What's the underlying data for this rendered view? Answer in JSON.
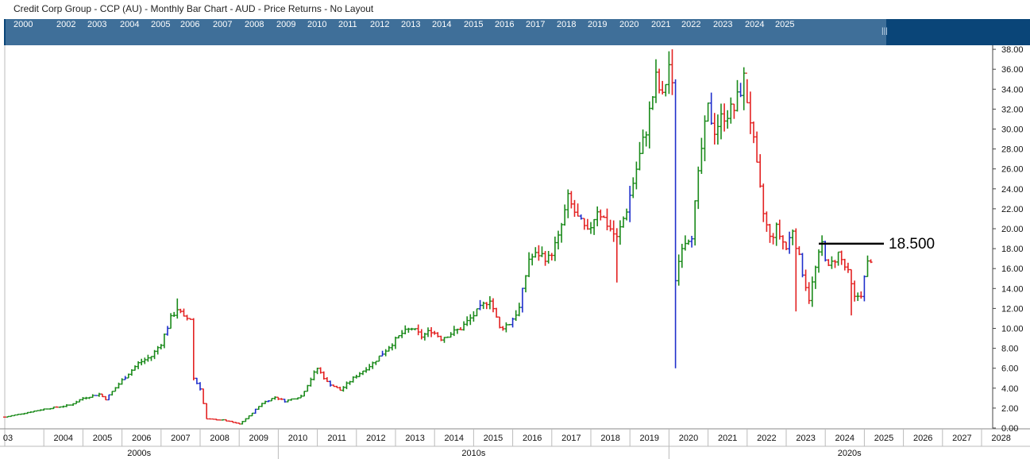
{
  "window": {
    "title": "Credit Corp Group - CCP (AU) - Monthly Bar Chart - AUD - Price Returns - No Layout"
  },
  "navigator": {
    "years": [
      "2000",
      "2002",
      "2003",
      "2004",
      "2005",
      "2006",
      "2007",
      "2008",
      "2009",
      "2010",
      "2011",
      "2012",
      "2013",
      "2014",
      "2015",
      "2016",
      "2017",
      "2018",
      "2019",
      "2020",
      "2021",
      "2022",
      "2023",
      "2024",
      "2025"
    ]
  },
  "colors": {
    "up": "#1a8a1a",
    "down": "#e32222",
    "neutral": "#1f2fcc",
    "navigator_bg": "#0a4578",
    "navigator_window": "#3f6f99",
    "horizontal_line": "#000000"
  },
  "chart_data": {
    "type": "ohlc-bar",
    "title": "Credit Corp Group - CCP (AU) - Monthly Bar Chart - AUD - Price Returns - No Layout",
    "y_axis": {
      "position": "right",
      "range": [
        0,
        38
      ],
      "ticks": [
        "0.00",
        "2.00",
        "4.00",
        "6.00",
        "8.00",
        "10.00",
        "12.00",
        "14.00",
        "16.00",
        "18.00",
        "20.00",
        "22.00",
        "24.00",
        "26.00",
        "28.00",
        "30.00",
        "32.00",
        "34.00",
        "36.00",
        "38.00"
      ]
    },
    "x_axis": {
      "range": [
        "2003-01",
        "2028-12"
      ],
      "year_labels": [
        "03",
        "2004",
        "2005",
        "2006",
        "2007",
        "2008",
        "2009",
        "2010",
        "2011",
        "2012",
        "2013",
        "2014",
        "2015",
        "2016",
        "2017",
        "2018",
        "2019",
        "2020",
        "2021",
        "2022",
        "2023",
        "2024",
        "2025",
        "2026",
        "2027",
        "2028"
      ],
      "decade_labels": [
        "2000s",
        "2010s",
        "2020s"
      ]
    },
    "horizontal_line": {
      "value": 18.5,
      "label": "18.500",
      "from": "2023-11",
      "to": "2025-07"
    },
    "grid": false,
    "anchors": [
      [
        "2003-01",
        1.1
      ],
      [
        "2004-01",
        1.9
      ],
      [
        "2004-09",
        2.3
      ],
      [
        "2005-01",
        3.0
      ],
      [
        "2005-06",
        3.4
      ],
      [
        "2005-08",
        2.9
      ],
      [
        "2006-01",
        4.8
      ],
      [
        "2006-06",
        6.5
      ],
      [
        "2006-10",
        7.2
      ],
      [
        "2007-01",
        8.5
      ],
      [
        "2007-04",
        11.0
      ],
      [
        "2007-06",
        12.0
      ],
      [
        "2007-08",
        11.0
      ],
      [
        "2007-10",
        11.0
      ],
      [
        "2007-11",
        5.0
      ],
      [
        "2008-01",
        4.0
      ],
      [
        "2008-03",
        0.9
      ],
      [
        "2008-08",
        0.8
      ],
      [
        "2009-01",
        0.4
      ],
      [
        "2009-04",
        1.2
      ],
      [
        "2009-08",
        2.5
      ],
      [
        "2009-12",
        3.1
      ],
      [
        "2010-03",
        2.7
      ],
      [
        "2010-08",
        3.2
      ],
      [
        "2010-12",
        5.5
      ],
      [
        "2011-01",
        6.0
      ],
      [
        "2011-04",
        4.6
      ],
      [
        "2011-08",
        3.8
      ],
      [
        "2011-12",
        5.0
      ],
      [
        "2012-06",
        6.5
      ],
      [
        "2012-12",
        8.5
      ],
      [
        "2013-03",
        9.5
      ],
      [
        "2013-06",
        10.0
      ],
      [
        "2013-09",
        9.2
      ],
      [
        "2013-12",
        9.8
      ],
      [
        "2014-03",
        9.0
      ],
      [
        "2014-06",
        9.5
      ],
      [
        "2014-09",
        10.0
      ],
      [
        "2014-12",
        11.0
      ],
      [
        "2015-03",
        12.0
      ],
      [
        "2015-06",
        13.0
      ],
      [
        "2015-09",
        10.0
      ],
      [
        "2015-12",
        10.5
      ],
      [
        "2016-03",
        12.0
      ],
      [
        "2016-06",
        17.0
      ],
      [
        "2016-09",
        17.5
      ],
      [
        "2016-12",
        17.0
      ],
      [
        "2017-03",
        19.0
      ],
      [
        "2017-06",
        23.0
      ],
      [
        "2017-09",
        21.0
      ],
      [
        "2017-12",
        19.5
      ],
      [
        "2018-03",
        22.0
      ],
      [
        "2018-06",
        20.5
      ],
      [
        "2018-09",
        19.0
      ],
      [
        "2018-12",
        22.0
      ],
      [
        "2019-03",
        26.0
      ],
      [
        "2019-06",
        30.0
      ],
      [
        "2019-09",
        35.0
      ],
      [
        "2019-11",
        33.0
      ],
      [
        "2020-01",
        36.5
      ],
      [
        "2020-02",
        34.0
      ],
      [
        "2020-03",
        15.0
      ],
      [
        "2020-05",
        18.5
      ],
      [
        "2020-08",
        19.5
      ],
      [
        "2020-11",
        28.0
      ],
      [
        "2021-01",
        32.0
      ],
      [
        "2021-03",
        30.0
      ],
      [
        "2021-06",
        31.5
      ],
      [
        "2021-09",
        32.0
      ],
      [
        "2021-12",
        35.0
      ],
      [
        "2022-02",
        31.0
      ],
      [
        "2022-04",
        26.0
      ],
      [
        "2022-06",
        21.5
      ],
      [
        "2022-08",
        19.0
      ],
      [
        "2022-10",
        20.0
      ],
      [
        "2023-01",
        18.0
      ],
      [
        "2023-03",
        20.0
      ],
      [
        "2023-05",
        17.0
      ],
      [
        "2023-08",
        13.0
      ],
      [
        "2023-10",
        16.0
      ],
      [
        "2023-12",
        18.5
      ],
      [
        "2024-02",
        16.0
      ],
      [
        "2024-05",
        17.5
      ],
      [
        "2024-08",
        15.5
      ],
      [
        "2024-10",
        13.0
      ],
      [
        "2024-12",
        13.5
      ],
      [
        "2025-02",
        16.5
      ],
      [
        "2025-03",
        17.0
      ]
    ],
    "extremes": [
      [
        "2007-06",
        13.0,
        "high"
      ],
      [
        "2020-02",
        38.0,
        "high"
      ],
      [
        "2020-03",
        6.0,
        "low"
      ],
      [
        "2021-12",
        36.2,
        "high"
      ],
      [
        "2024-09",
        11.3,
        "low"
      ],
      [
        "2018-09",
        14.6,
        "low"
      ],
      [
        "2023-04",
        11.7,
        "low"
      ],
      [
        "2022-01",
        35.0,
        "high"
      ]
    ]
  }
}
